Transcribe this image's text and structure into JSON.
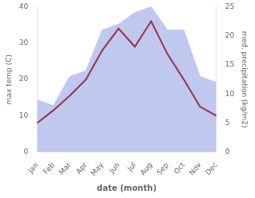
{
  "chart_data": {
    "type": "line",
    "xlabel": "date (month)",
    "ylabel": "max temp (C)",
    "y2label": "med. precipitation (kg/m2)",
    "categories": [
      "Jan",
      "Feb",
      "Mar",
      "Apr",
      "May",
      "Jun",
      "Jul",
      "Aug",
      "Sep",
      "Oct",
      "Nov",
      "Dec"
    ],
    "series": [
      {
        "type": "line",
        "color": "#993344",
        "values": [
          8.0,
          11.5,
          15.5,
          20.0,
          28.0,
          34.0,
          29.0,
          36.0,
          27.0,
          20.0,
          12.5,
          10.0
        ]
      },
      {
        "type": "area",
        "axis": "y2",
        "color": "#bfc8ef",
        "values": [
          9.0,
          8.0,
          13.0,
          14.0,
          21.0,
          22.0,
          24.0,
          25.0,
          21.0,
          21.0,
          13.0,
          12.0
        ]
      }
    ],
    "ylim": [
      0,
      40
    ],
    "yticks": [
      0,
      10,
      20,
      30,
      40
    ],
    "y2lim": [
      0,
      25
    ],
    "y2ticks": [
      0,
      5,
      10,
      15,
      20,
      25
    ],
    "grid": false
  }
}
